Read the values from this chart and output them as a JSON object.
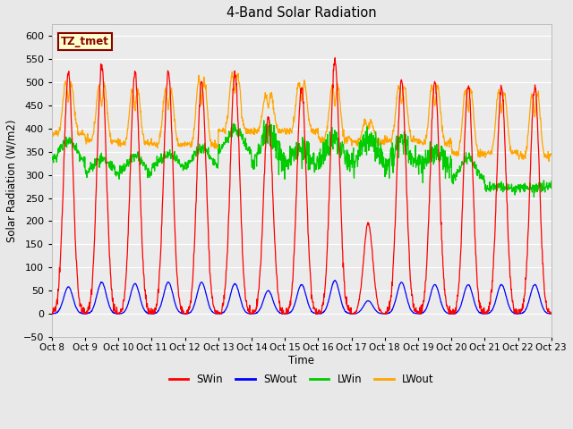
{
  "title": "4-Band Solar Radiation",
  "xlabel": "Time",
  "ylabel": "Solar Radiation (W/m2)",
  "ylim": [
    -50,
    625
  ],
  "background_color": "#e8e8e8",
  "plot_bg_color": "#ebebeb",
  "annotation_text": "TZ_tmet",
  "annotation_color": "#8B0000",
  "annotation_bg": "#ffffcc",
  "colors": {
    "SWin": "#ff0000",
    "SWout": "#0000ff",
    "LWin": "#00cc00",
    "LWout": "#ffa500"
  },
  "n_days": 15,
  "start_day": 8,
  "SWin_peaks": [
    520,
    535,
    520,
    520,
    500,
    520,
    425,
    490,
    550,
    195,
    505,
    500,
    495,
    490,
    490
  ],
  "SWout_peaks": [
    58,
    68,
    65,
    68,
    68,
    65,
    50,
    63,
    72,
    28,
    68,
    63,
    63,
    63,
    63
  ],
  "LWin_base": [
    325,
    298,
    296,
    315,
    312,
    342,
    308,
    317,
    316,
    320,
    312,
    315,
    280,
    267,
    274
  ],
  "LWin_peak": [
    375,
    335,
    340,
    343,
    358,
    398,
    395,
    355,
    378,
    375,
    373,
    348,
    336,
    275,
    274
  ],
  "LWout_night": [
    390,
    373,
    368,
    367,
    365,
    395,
    395,
    395,
    377,
    370,
    375,
    370,
    348,
    348,
    340
  ],
  "LWout_peaks": [
    510,
    505,
    495,
    495,
    520,
    530,
    480,
    510,
    505,
    420,
    505,
    505,
    498,
    495,
    488
  ]
}
